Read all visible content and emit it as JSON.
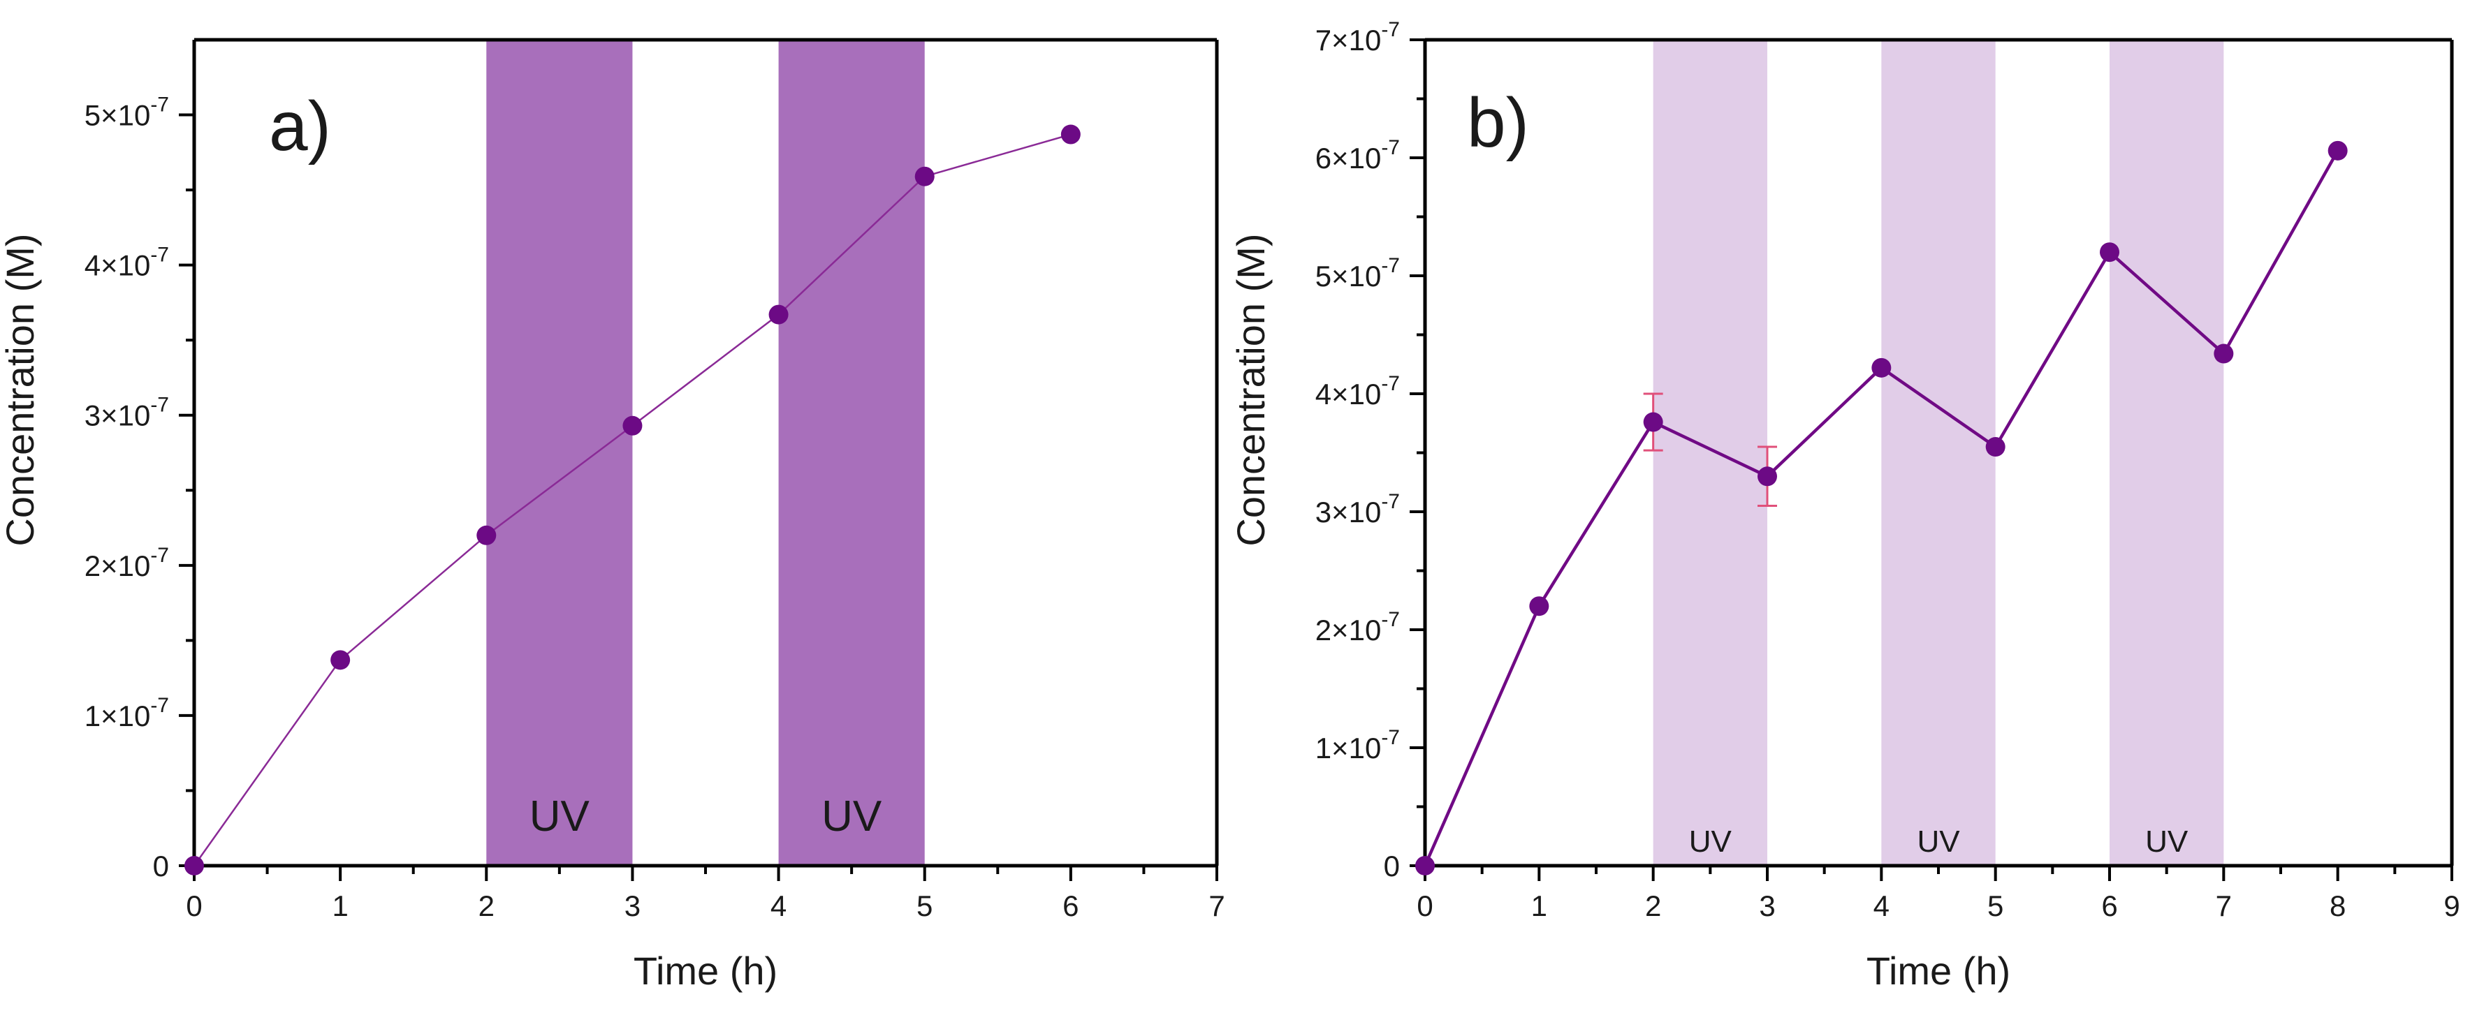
{
  "chart_data": [
    {
      "type": "line",
      "panel_label": "a)",
      "xlabel": "Time (h)",
      "ylabel": "Concentration (M)",
      "xlim": [
        0,
        7
      ],
      "ylim": [
        0,
        5.5e-07
      ],
      "xticks": [
        {
          "value": 0,
          "label": "0"
        },
        {
          "value": 1,
          "label": "1"
        },
        {
          "value": 2,
          "label": "2"
        },
        {
          "value": 3,
          "label": "3"
        },
        {
          "value": 4,
          "label": "4"
        },
        {
          "value": 5,
          "label": "5"
        },
        {
          "value": 6,
          "label": "6"
        },
        {
          "value": 7,
          "label": "7"
        }
      ],
      "yticks": [
        {
          "value": 0,
          "label": "0"
        },
        {
          "value": 1e-07,
          "mant": "1×10",
          "exp": "-7"
        },
        {
          "value": 2e-07,
          "mant": "2×10",
          "exp": "-7"
        },
        {
          "value": 3e-07,
          "mant": "3×10",
          "exp": "-7"
        },
        {
          "value": 4e-07,
          "mant": "4×10",
          "exp": "-7"
        },
        {
          "value": 5e-07,
          "mant": "5×10",
          "exp": "-7"
        }
      ],
      "series": [
        {
          "name": "concentration",
          "x": [
            0,
            1,
            2,
            3,
            4,
            5,
            6
          ],
          "y": [
            0,
            1.37e-07,
            2.2e-07,
            2.93e-07,
            3.67e-07,
            4.59e-07,
            4.87e-07
          ]
        }
      ],
      "uv_bands": [
        {
          "x0": 2,
          "x1": 3,
          "label": "UV"
        },
        {
          "x0": 4,
          "x1": 5,
          "label": "UV"
        }
      ],
      "colors": {
        "band": "#a86fbb",
        "line": "#8a2a96",
        "marker": "#6c0a85"
      }
    },
    {
      "type": "line",
      "panel_label": "b)",
      "xlabel": "Time (h)",
      "ylabel": "Concentration (M)",
      "xlim": [
        0,
        9
      ],
      "ylim": [
        0,
        7e-07
      ],
      "xticks": [
        {
          "value": 0,
          "label": "0"
        },
        {
          "value": 1,
          "label": "1"
        },
        {
          "value": 2,
          "label": "2"
        },
        {
          "value": 3,
          "label": "3"
        },
        {
          "value": 4,
          "label": "4"
        },
        {
          "value": 5,
          "label": "5"
        },
        {
          "value": 6,
          "label": "6"
        },
        {
          "value": 7,
          "label": "7"
        },
        {
          "value": 8,
          "label": "8"
        },
        {
          "value": 9,
          "label": "9"
        }
      ],
      "yticks": [
        {
          "value": 0,
          "label": "0"
        },
        {
          "value": 1e-07,
          "mant": "1×10",
          "exp": "-7"
        },
        {
          "value": 2e-07,
          "mant": "2×10",
          "exp": "-7"
        },
        {
          "value": 3e-07,
          "mant": "3×10",
          "exp": "-7"
        },
        {
          "value": 4e-07,
          "mant": "4×10",
          "exp": "-7"
        },
        {
          "value": 5e-07,
          "mant": "5×10",
          "exp": "-7"
        },
        {
          "value": 6e-07,
          "mant": "6×10",
          "exp": "-7"
        },
        {
          "value": 7e-07,
          "mant": "7×10",
          "exp": "-7"
        }
      ],
      "series": [
        {
          "name": "concentration",
          "x": [
            0,
            1,
            2,
            3,
            4,
            5,
            6,
            7,
            8
          ],
          "y": [
            0,
            2.2e-07,
            3.76e-07,
            3.3e-07,
            4.22e-07,
            3.55e-07,
            5.2e-07,
            4.34e-07,
            6.06e-07
          ],
          "err": [
            0,
            0,
            2.4e-08,
            2.5e-08,
            0,
            0,
            0,
            0,
            0
          ]
        }
      ],
      "uv_bands": [
        {
          "x0": 2,
          "x1": 3,
          "label": "UV"
        },
        {
          "x0": 4,
          "x1": 5,
          "label": "UV"
        },
        {
          "x0": 6,
          "x1": 7,
          "label": "UV"
        }
      ],
      "colors": {
        "band": "#e1cde8",
        "line": "#700a85",
        "marker": "#6c0a85",
        "error": "#e0507a"
      }
    }
  ]
}
